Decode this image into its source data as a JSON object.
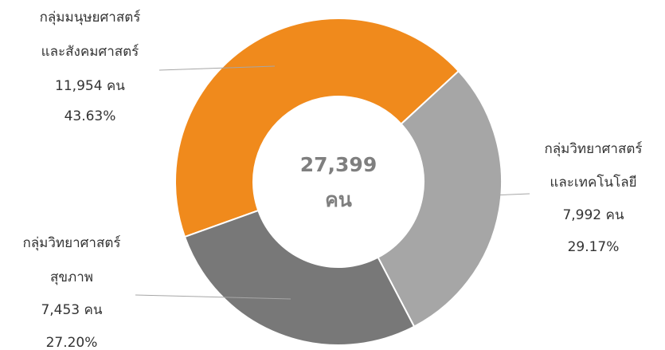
{
  "chart_data": {
    "type": "donut",
    "categories": [
      [
        "กลุ่มมนุษยศาสตร์",
        "และสังคมศาสตร์"
      ],
      [
        "กลุ่มวิทยาศาสตร์",
        "และเทคโนโลยี"
      ],
      [
        "กลุ่มวิทยาศาสตร์",
        "สุขภาพ"
      ]
    ],
    "values": [
      11954,
      7992,
      7453
    ],
    "value_labels": [
      "11,954 คน",
      "7,992 คน",
      "7,453 คน"
    ],
    "percent_labels": [
      "43.63%",
      "29.17%",
      "27.20%"
    ],
    "colors": [
      "#f08a1c",
      "#a6a6a6",
      "#787878"
    ],
    "center_label": "27,399",
    "center_unit": "คน"
  }
}
